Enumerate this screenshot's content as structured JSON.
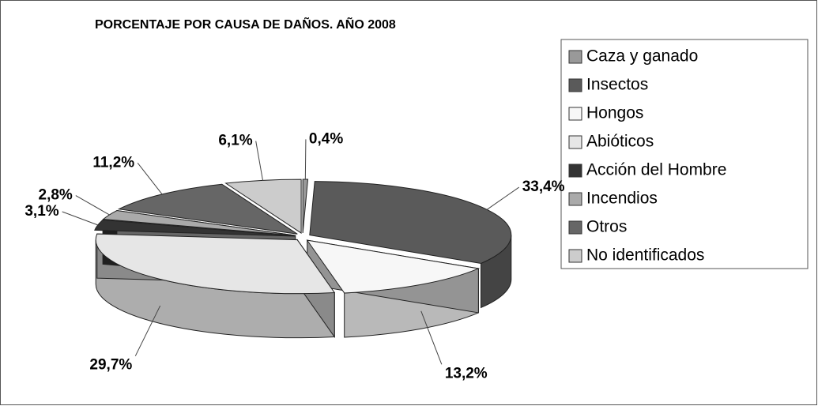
{
  "chart_data": {
    "type": "pie3d",
    "title": "PORCENTAJE POR CAUSA DE DAÑOS. AÑO 2008",
    "categories": [
      "Caza y ganado",
      "Insectos",
      "Hongos",
      "Abióticos",
      "Acción del Hombre",
      "Incendios",
      "Otros",
      "No identificados"
    ],
    "values": [
      0.4,
      33.4,
      13.2,
      29.7,
      3.1,
      2.8,
      11.2,
      6.1
    ],
    "value_labels": [
      "0,4%",
      "33,4%",
      "13,2%",
      "29,7%",
      "3,1%",
      "2,8%",
      "11,2%",
      "6,1%"
    ],
    "colors": [
      "#999999",
      "#5a5a5a",
      "#f7f7f7",
      "#e6e6e6",
      "#333333",
      "#aaaaaa",
      "#666666",
      "#cccccc"
    ],
    "legend": "right"
  }
}
